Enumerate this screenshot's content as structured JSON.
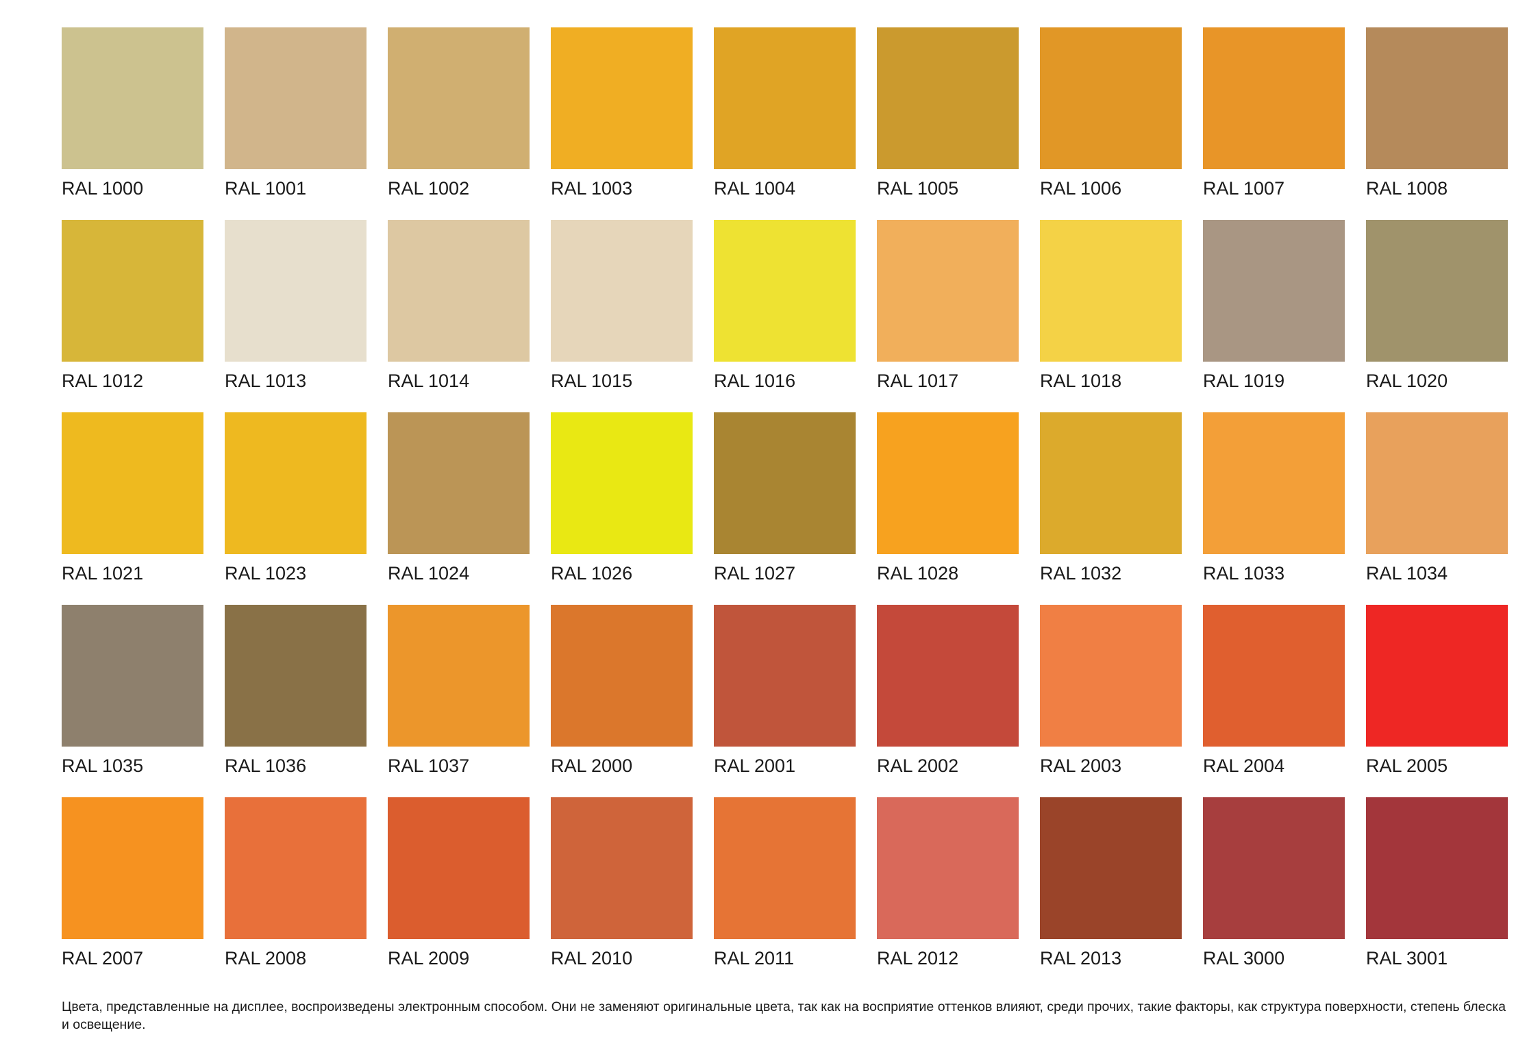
{
  "swatches": [
    {
      "code": "RAL 1000",
      "color": "#CCC28F"
    },
    {
      "code": "RAL 1001",
      "color": "#D1B58B"
    },
    {
      "code": "RAL 1002",
      "color": "#D0AF71"
    },
    {
      "code": "RAL 1003",
      "color": "#F0AE23"
    },
    {
      "code": "RAL 1004",
      "color": "#E0A425"
    },
    {
      "code": "RAL 1005",
      "color": "#CB9A2E"
    },
    {
      "code": "RAL 1006",
      "color": "#E19726"
    },
    {
      "code": "RAL 1007",
      "color": "#E89528"
    },
    {
      "code": "RAL 1008",
      "color": "#B58A5B"
    },
    {
      "code": "RAL 1012",
      "color": "#D7B639"
    },
    {
      "code": "RAL 1013",
      "color": "#E7DFCD"
    },
    {
      "code": "RAL 1014",
      "color": "#DDC8A2"
    },
    {
      "code": "RAL 1015",
      "color": "#E6D6BA"
    },
    {
      "code": "RAL 1016",
      "color": "#EEE232"
    },
    {
      "code": "RAL 1017",
      "color": "#F1AF5B"
    },
    {
      "code": "RAL 1018",
      "color": "#F4D246"
    },
    {
      "code": "RAL 1019",
      "color": "#A99683"
    },
    {
      "code": "RAL 1020",
      "color": "#A0936B"
    },
    {
      "code": "RAL 1021",
      "color": "#EEBA1F"
    },
    {
      "code": "RAL 1023",
      "color": "#EEB920"
    },
    {
      "code": "RAL 1024",
      "color": "#BB9556"
    },
    {
      "code": "RAL 1026",
      "color": "#E9E813"
    },
    {
      "code": "RAL 1027",
      "color": "#A98532"
    },
    {
      "code": "RAL 1028",
      "color": "#F7A21F"
    },
    {
      "code": "RAL 1032",
      "color": "#DCAA2C"
    },
    {
      "code": "RAL 1033",
      "color": "#F39F38"
    },
    {
      "code": "RAL 1034",
      "color": "#E8A15C"
    },
    {
      "code": "RAL 1035",
      "color": "#8E806D"
    },
    {
      "code": "RAL 1036",
      "color": "#897147"
    },
    {
      "code": "RAL 1037",
      "color": "#EC962B"
    },
    {
      "code": "RAL 2000",
      "color": "#DB772C"
    },
    {
      "code": "RAL 2001",
      "color": "#C0553B"
    },
    {
      "code": "RAL 2002",
      "color": "#C4493A"
    },
    {
      "code": "RAL 2003",
      "color": "#F07F44"
    },
    {
      "code": "RAL 2004",
      "color": "#E05F2F"
    },
    {
      "code": "RAL 2005",
      "color": "#EE2724"
    },
    {
      "code": "RAL 2007",
      "color": "#F69220"
    },
    {
      "code": "RAL 2008",
      "color": "#E8703A"
    },
    {
      "code": "RAL 2009",
      "color": "#DB5D2E"
    },
    {
      "code": "RAL 2010",
      "color": "#CF643A"
    },
    {
      "code": "RAL 2011",
      "color": "#E67435"
    },
    {
      "code": "RAL 2012",
      "color": "#D9695A"
    },
    {
      "code": "RAL 2013",
      "color": "#9A4429"
    },
    {
      "code": "RAL 3000",
      "color": "#A73E3E"
    },
    {
      "code": "RAL 3001",
      "color": "#A3363B"
    }
  ],
  "disclaimer": "Цвета, представленные на дисплее, воспроизведены электронным способом. Они не заменяют оригинальные цвета, так как на восприятие оттенков влияют, среди прочих, такие факторы, как структура поверхности, степень блеска и освещение."
}
